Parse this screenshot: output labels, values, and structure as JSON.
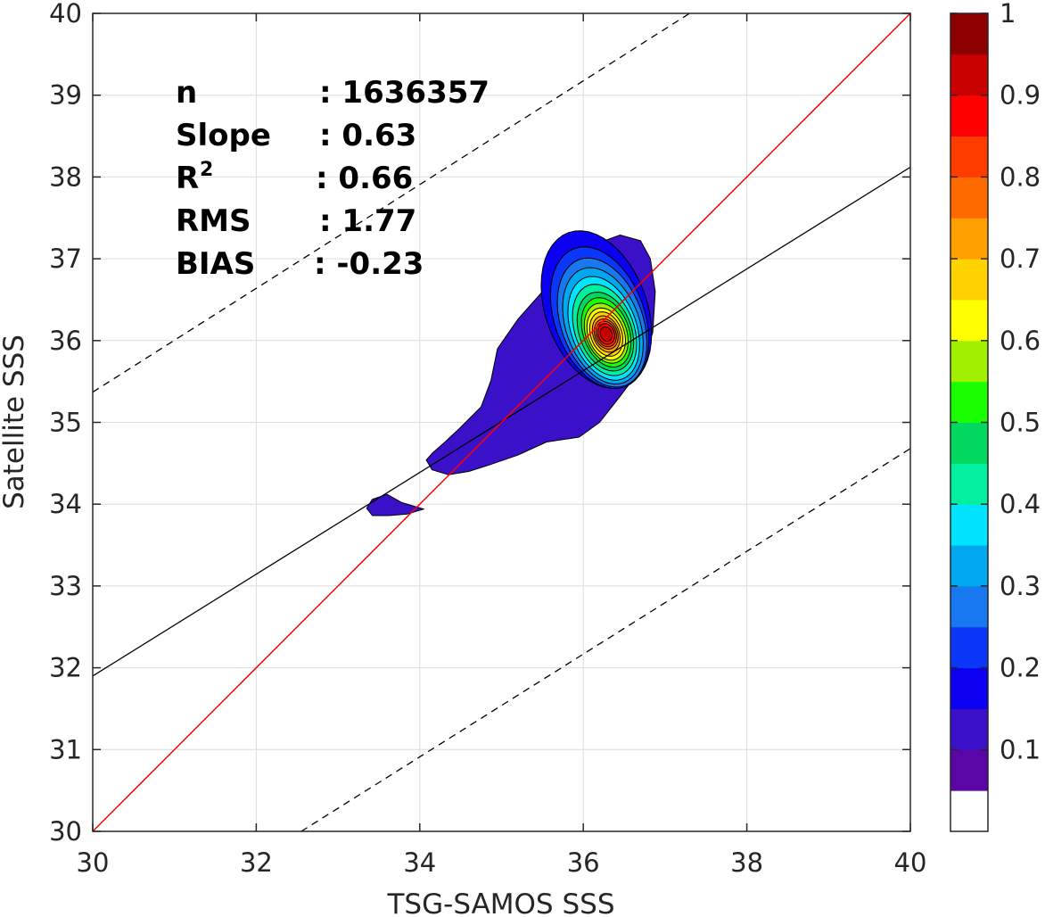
{
  "chart_data": {
    "type": "contour",
    "xlabel": "TSG-SAMOS SSS",
    "ylabel": "Satellite SSS",
    "xlim": [
      30,
      40
    ],
    "ylim": [
      30,
      40
    ],
    "xticks": [
      "30",
      "32",
      "34",
      "36",
      "38",
      "40"
    ],
    "yticks": [
      "30",
      "31",
      "32",
      "33",
      "34",
      "35",
      "36",
      "37",
      "38",
      "39",
      "40"
    ],
    "grid": true,
    "stats": [
      {
        "label": "n",
        "value": ": 1636357"
      },
      {
        "label": "Slope",
        "value": ": 0.63"
      },
      {
        "label": "R",
        "sup": "2",
        "value": ": 0.66"
      },
      {
        "label": "RMS",
        "value": ": 1.77"
      },
      {
        "label": "BIAS",
        "value": ": -0.23"
      }
    ],
    "lines": {
      "one_to_one": {
        "x": [
          30,
          40
        ],
        "y": [
          30,
          40
        ],
        "color": "#ff0000"
      },
      "regression": {
        "x": [
          30,
          40
        ],
        "y": [
          31.9,
          38.12
        ],
        "color": "#000000"
      },
      "upper_dashed": {
        "x": [
          30,
          37.3
        ],
        "y": [
          35.37,
          40
        ],
        "color": "#000000"
      },
      "lower_dashed": {
        "x": [
          32.55,
          40
        ],
        "y": [
          30,
          34.68
        ],
        "color": "#000000"
      }
    },
    "density_peak": {
      "x": 36.28,
      "y": 36.08
    },
    "colorbar": {
      "ticks": [
        "0.1",
        "0.2",
        "0.3",
        "0.4",
        "0.5",
        "0.6",
        "0.7",
        "0.8",
        "0.9",
        "1"
      ],
      "levels": [
        0,
        0.05,
        0.1,
        0.15,
        0.2,
        0.25,
        0.3,
        0.35,
        0.4,
        0.45,
        0.5,
        0.55,
        0.6,
        0.65,
        0.7,
        0.75,
        0.8,
        0.85,
        0.9,
        0.95,
        1.0
      ],
      "colors": [
        "#ffffff",
        "#5a06a6",
        "#3a11c8",
        "#0c00f0",
        "#0a37f8",
        "#1878f0",
        "#00a8f0",
        "#00e4ff",
        "#00f0a0",
        "#00d860",
        "#18ff00",
        "#a0f000",
        "#ffff00",
        "#ffd200",
        "#ffa000",
        "#ff6a00",
        "#ff3c00",
        "#ff0000",
        "#c80000",
        "#8c0000"
      ]
    }
  }
}
